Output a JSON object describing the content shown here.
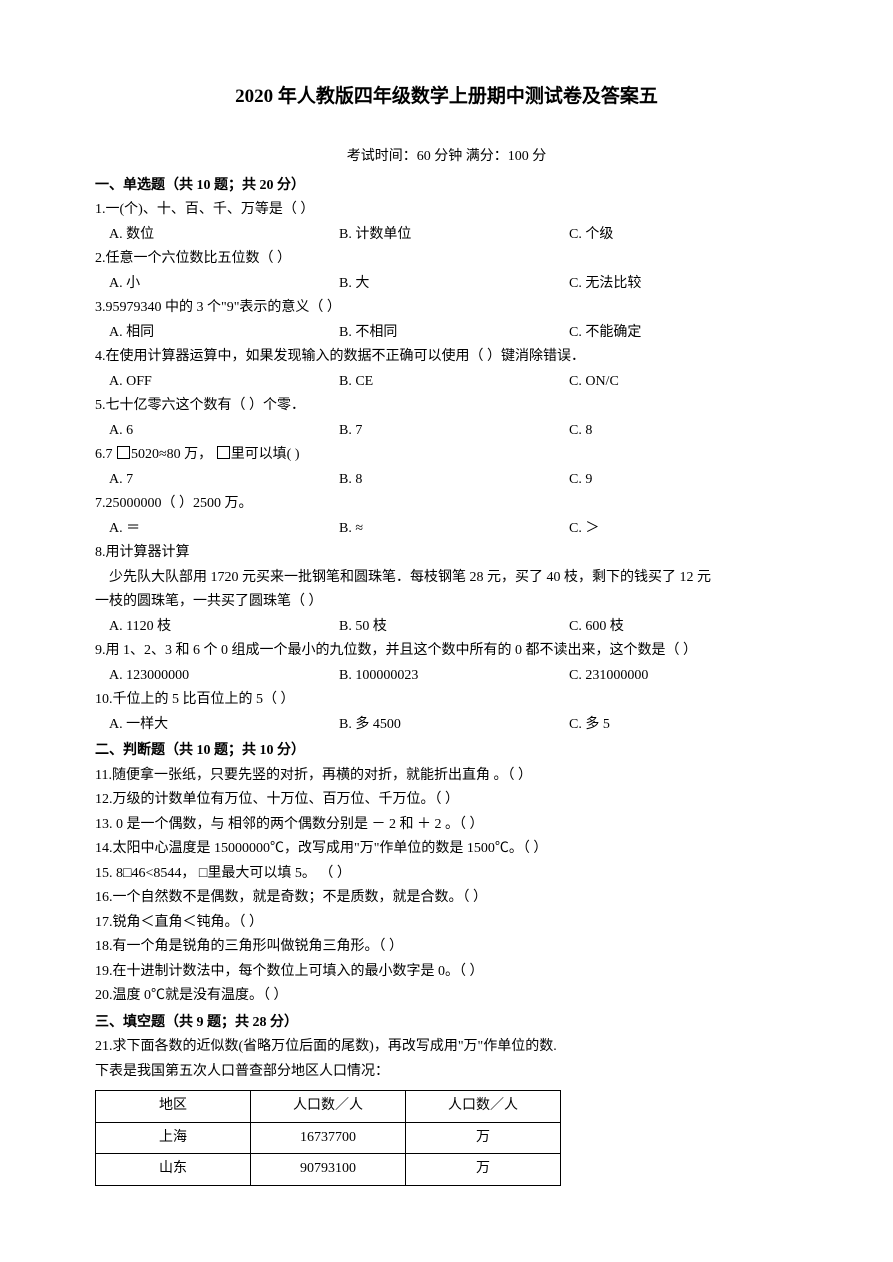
{
  "title": "2020 年人教版四年级数学上册期中测试卷及答案五",
  "exam_info": "考试时间：60 分钟  满分：100 分",
  "section1": {
    "header": "一、单选题（共 10 题；共 20 分）",
    "q1": {
      "text": "1.一(个)、十、百、千、万等是（   ）",
      "a": "A. 数位",
      "b": "B. 计数单位",
      "c": "C. 个级"
    },
    "q2": {
      "text": "2.任意一个六位数比五位数（   ）",
      "a": "A. 小",
      "b": "B. 大",
      "c": "C. 无法比较"
    },
    "q3": {
      "text": "3.95979340 中的 3 个\"9\"表示的意义（   ）",
      "a": "A. 相同",
      "b": "B. 不相同",
      "c": "C. 不能确定"
    },
    "q4": {
      "text": "4.在使用计算器运算中，如果发现输入的数据不正确可以使用（   ）键消除错误．",
      "a": "A. OFF",
      "b": "B. CE",
      "c": "C. ON/C"
    },
    "q5": {
      "text": "5.七十亿零六这个数有（   ）个零．",
      "a": "A. 6",
      "b": "B. 7",
      "c": "C. 8"
    },
    "q6": {
      "text_prefix": "6.7 ",
      "text_suffix": "5020≈80 万，  ",
      "text_end": "里可以填(    )",
      "a": "A. 7",
      "b": "B. 8",
      "c": "C. 9"
    },
    "q7": {
      "text": "7.25000000（     ）2500 万。",
      "a": "A. ＝",
      "b": "B. ≈",
      "c": "C. ＞"
    },
    "q8": {
      "text": "8.用计算器计算",
      "line1": "少先队大队部用 1720 元买来一批钢笔和圆珠笔．每枝钢笔 28 元，买了 40 枝，剩下的钱买了 12 元",
      "line2": "一枝的圆珠笔，一共买了圆珠笔（   ）",
      "a": "A. 1120 枝",
      "b": "B. 50 枝",
      "c": "C. 600 枝"
    },
    "q9": {
      "text": "9.用 1、2、3 和 6 个 0 组成一个最小的九位数，并且这个数中所有的 0 都不读出来，这个数是（   ）",
      "a": "A. 123000000",
      "b": "B. 100000023",
      "c": "C. 231000000"
    },
    "q10": {
      "text": "10.千位上的 5 比百位上的 5（   ）",
      "a": "A. 一样大",
      "b": "B. 多 4500",
      "c": "C. 多 5"
    }
  },
  "section2": {
    "header": "二、判断题（共 10 题；共 10 分）",
    "q11": "11.随便拿一张纸，只要先竖的对折，再横的对折，就能折出直角   。（   ）",
    "q12": "12.万级的计数单位有万位、十万位、百万位、千万位。（   ）",
    "q13": "13. 0 是一个偶数，与  相邻的两个偶数分别是  －  2  和  ＋  2  。（   ）",
    "q14": "14.太阳中心温度是 15000000℃，改写成用\"万\"作单位的数是 1500℃。（   ）",
    "q15_prefix": "15. 8",
    "q15_mid": "46<8544，  ",
    "q15_suffix": "里最大可以填 5。 （   ）",
    "q16": "16.一个自然数不是偶数，就是奇数；不是质数，就是合数。（   ）",
    "q17": "17.锐角＜直角＜钝角。（   ）",
    "q18": "18.有一个角是锐角的三角形叫做锐角三角形。（   ）",
    "q19": "19.在十进制计数法中，每个数位上可填入的最小数字是 0。（   ）",
    "q20": "20.温度 0℃就是没有温度。（   ）"
  },
  "section3": {
    "header": "三、填空题（共 9 题；共 28 分）",
    "q21": "21.求下面各数的近似数(省略万位后面的尾数)，再改写成用\"万\"作单位的数.",
    "q21_desc": "下表是我国第五次人口普查部分地区人口情况：",
    "table": {
      "headers": [
        "地区",
        "人口数／人",
        "人口数／人"
      ],
      "rows": [
        [
          "上海",
          "16737700",
          "万"
        ],
        [
          "山东",
          "90793100",
          "万"
        ]
      ]
    }
  }
}
